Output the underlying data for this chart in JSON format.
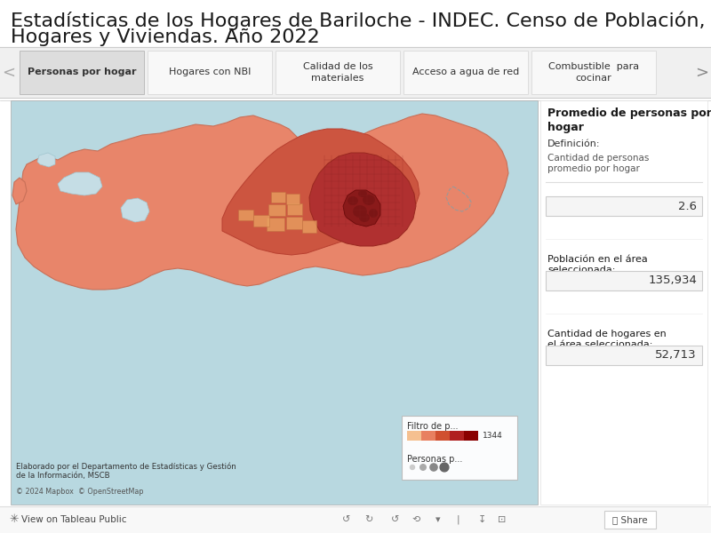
{
  "title_line1": "Estadísticas de los Hogares de Bariloche - INDEC. Censo de Población,",
  "title_line2": "Hogares y Viviendas. Año 2022",
  "title_fontsize": 16,
  "bg_color": "#ffffff",
  "tab_items": [
    "Personas por hogar",
    "Hogares con NBI",
    "Calidad de los\nmateriales",
    "Acceso a agua de red",
    "Combustible  para\ncocinar"
  ],
  "tab_selected": 0,
  "map_bg": "#b8d8e0",
  "map_land_light": "#e8856a",
  "map_land_medium": "#d05040",
  "map_land_dark": "#b03030",
  "map_land_darkest": "#8a1a1a",
  "sidebar_title": "Promedio de personas por\nhogar",
  "sidebar_def_label": "Definición:",
  "sidebar_def_text": "Cantidad de personas\npromedio por hogar",
  "sidebar_field_label": "Personas por hogar",
  "sidebar_field_value": "2.6",
  "sidebar_pop_label": "Población en el área\nseleccionada:",
  "sidebar_pop_value": "135,934",
  "sidebar_hog_label": "Cantidad de hogares en\nel área seleccionada:",
  "sidebar_hog_value": "52,713",
  "legend_filter_label": "Filtro de p...",
  "legend_personas_label": "Personas p...",
  "legend_max": "1344",
  "credit_text": "Elaborado por el Departamento de Estadísticas y Gestión\nde la Información, MSCB",
  "mapbox_text": "© 2024 Mapbox  © OpenStreetMap",
  "tableau_footer": "View on Tableau Public"
}
